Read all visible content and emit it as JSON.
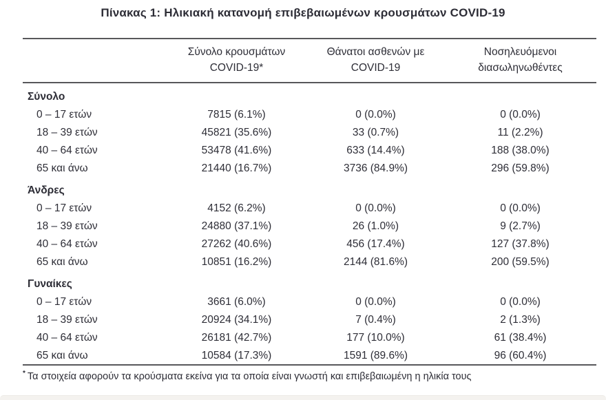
{
  "title": "Πίνακας 1: Ηλικιακή κατανομή επιβεβαιωμένων κρουσμάτων COVID-19",
  "colors": {
    "text": "#2d2d36",
    "line": "#57575a",
    "page_bg": "#ffffff",
    "strip": "#f4f2ef"
  },
  "table": {
    "column_headers": [
      {
        "line1": "",
        "line2": ""
      },
      {
        "line1": "Σύνολο κρουσμάτων",
        "line2": "COVID-19*"
      },
      {
        "line1": "Θάνατοι ασθενών με",
        "line2": "COVID-19"
      },
      {
        "line1": "Νοσηλευόμενοι",
        "line2": "διασωληνωθέντες"
      }
    ],
    "sections": [
      {
        "label": "Σύνολο",
        "rows": [
          {
            "age": "0 – 17 ετών",
            "cases": "7815 (6.1%)",
            "deaths": "0 (0.0%)",
            "intubated": "0 (0.0%)"
          },
          {
            "age": "18 – 39 ετών",
            "cases": "45821 (35.6%)",
            "deaths": "33 (0.7%)",
            "intubated": "11 (2.2%)"
          },
          {
            "age": "40 – 64 ετών",
            "cases": "53478 (41.6%)",
            "deaths": "633 (14.4%)",
            "intubated": "188 (38.0%)"
          },
          {
            "age": "65 και άνω",
            "cases": "21440 (16.7%)",
            "deaths": "3736 (84.9%)",
            "intubated": "296 (59.8%)"
          }
        ]
      },
      {
        "label": "Άνδρες",
        "rows": [
          {
            "age": "0 – 17 ετών",
            "cases": "4152 (6.2%)",
            "deaths": "0 (0.0%)",
            "intubated": "0 (0.0%)"
          },
          {
            "age": "18 – 39 ετών",
            "cases": "24880 (37.1%)",
            "deaths": "26 (1.0%)",
            "intubated": "9 (2.7%)"
          },
          {
            "age": "40 – 64 ετών",
            "cases": "27262 (40.6%)",
            "deaths": "456 (17.4%)",
            "intubated": "127 (37.8%)"
          },
          {
            "age": "65 και άνω",
            "cases": "10851 (16.2%)",
            "deaths": "2144 (81.6%)",
            "intubated": "200 (59.5%)"
          }
        ]
      },
      {
        "label": "Γυναίκες",
        "rows": [
          {
            "age": "0 – 17 ετών",
            "cases": "3661 (6.0%)",
            "deaths": "0 (0.0%)",
            "intubated": "0 (0.0%)"
          },
          {
            "age": "18 – 39 ετών",
            "cases": "20924 (34.1%)",
            "deaths": "7 (0.4%)",
            "intubated": "2 (1.3%)"
          },
          {
            "age": "40 – 64 ετών",
            "cases": "26181 (42.7%)",
            "deaths": "177 (10.0%)",
            "intubated": "61 (38.4%)"
          },
          {
            "age": "65 και άνω",
            "cases": "10584 (17.3%)",
            "deaths": "1591 (89.6%)",
            "intubated": "96 (60.4%)"
          }
        ]
      }
    ]
  },
  "footnote": {
    "marker": "*",
    "text": "Τα στοιχεία αφορούν τα κρούσματα εκείνα για τα οποία είναι γνωστή και επιβεβαιωμένη η ηλικία τους"
  }
}
